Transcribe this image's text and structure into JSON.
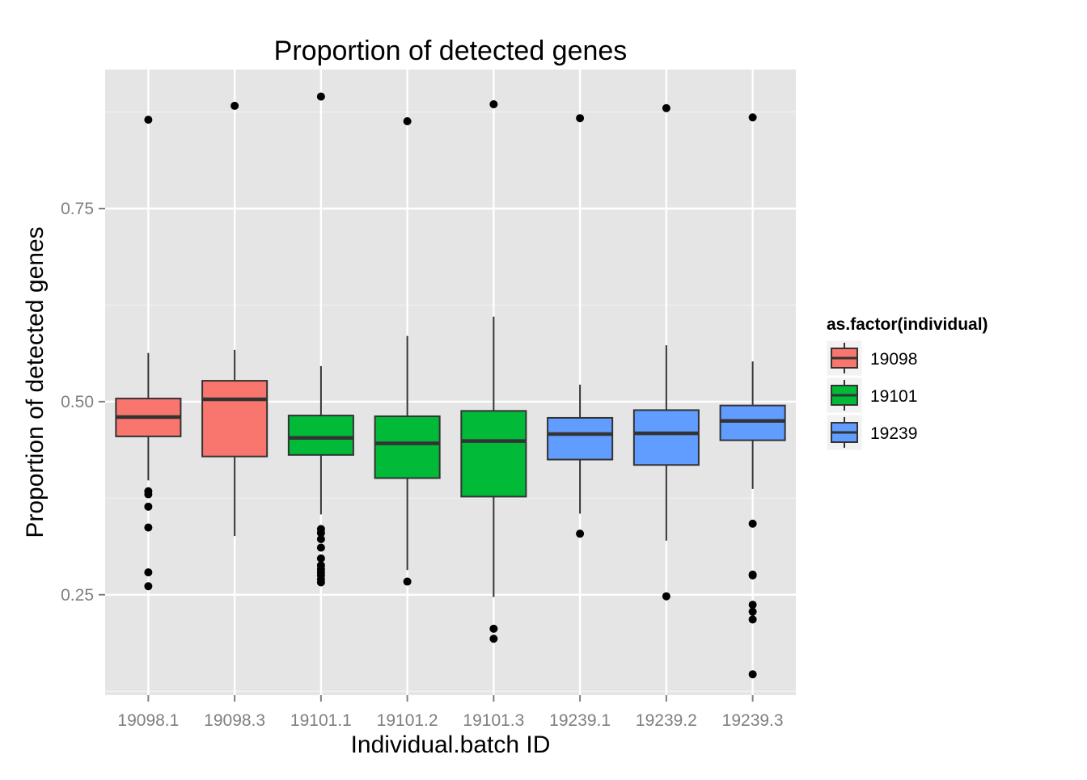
{
  "chart_data": {
    "type": "boxplot",
    "title": "Proportion of detected genes",
    "xlabel": "Individual.batch ID",
    "ylabel": "Proportion of detected genes",
    "ylim": [
      0.12,
      0.93
    ],
    "y_ticks": [
      0.25,
      0.5,
      0.75
    ],
    "y_tick_labels": [
      "0.25",
      "0.50",
      "0.75"
    ],
    "grid": true,
    "legend": {
      "title": "as.factor(individual)",
      "placement": "right",
      "entries": [
        {
          "label": "19098",
          "color": "#F8766D"
        },
        {
          "label": "19101",
          "color": "#00BA38"
        },
        {
          "label": "19239",
          "color": "#619CFF"
        }
      ]
    },
    "categories": [
      "19098.1",
      "19098.3",
      "19101.1",
      "19101.2",
      "19101.3",
      "19239.1",
      "19239.2",
      "19239.3"
    ],
    "boxes": [
      {
        "category": "19098.1",
        "group": "19098",
        "lower_whisker": 0.398,
        "q1": 0.455,
        "median": 0.48,
        "q3": 0.504,
        "upper_whisker": 0.563,
        "outliers": [
          0.865,
          0.384,
          0.38,
          0.364,
          0.337,
          0.279,
          0.261
        ]
      },
      {
        "category": "19098.3",
        "group": "19098",
        "lower_whisker": 0.326,
        "q1": 0.429,
        "median": 0.503,
        "q3": 0.527,
        "upper_whisker": 0.567,
        "outliers": [
          0.883
        ]
      },
      {
        "category": "19101.1",
        "group": "19101",
        "lower_whisker": 0.354,
        "q1": 0.431,
        "median": 0.453,
        "q3": 0.482,
        "upper_whisker": 0.546,
        "outliers": [
          0.895,
          0.335,
          0.33,
          0.322,
          0.311,
          0.297,
          0.288,
          0.283,
          0.279,
          0.275,
          0.27,
          0.266
        ]
      },
      {
        "category": "19101.2",
        "group": "19101",
        "lower_whisker": 0.282,
        "q1": 0.401,
        "median": 0.446,
        "q3": 0.481,
        "upper_whisker": 0.585,
        "outliers": [
          0.863,
          0.267
        ]
      },
      {
        "category": "19101.3",
        "group": "19101",
        "lower_whisker": 0.247,
        "q1": 0.377,
        "median": 0.449,
        "q3": 0.488,
        "upper_whisker": 0.61,
        "outliers": [
          0.885,
          0.206,
          0.193
        ]
      },
      {
        "category": "19239.1",
        "group": "19239",
        "lower_whisker": 0.355,
        "q1": 0.425,
        "median": 0.458,
        "q3": 0.479,
        "upper_whisker": 0.522,
        "outliers": [
          0.867,
          0.329
        ]
      },
      {
        "category": "19239.2",
        "group": "19239",
        "lower_whisker": 0.32,
        "q1": 0.418,
        "median": 0.459,
        "q3": 0.489,
        "upper_whisker": 0.573,
        "outliers": [
          0.88,
          0.248
        ]
      },
      {
        "category": "19239.3",
        "group": "19239",
        "lower_whisker": 0.387,
        "q1": 0.45,
        "median": 0.475,
        "q3": 0.495,
        "upper_whisker": 0.552,
        "outliers": [
          0.868,
          0.342,
          0.276,
          0.275,
          0.237,
          0.228,
          0.218,
          0.147
        ]
      }
    ]
  }
}
